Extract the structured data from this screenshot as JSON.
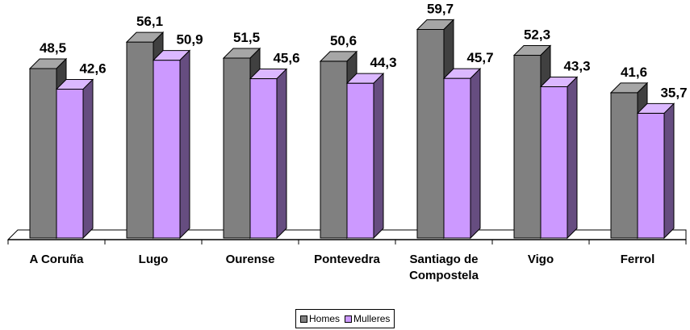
{
  "chart_data": {
    "type": "bar3d",
    "categories": [
      "A Coruña",
      "Lugo",
      "Ourense",
      "Pontevedra",
      "Santiago de Compostela",
      "Vigo",
      "Ferrol"
    ],
    "series": [
      {
        "name": "Homes",
        "color": "#808080",
        "values": [
          48.5,
          56.1,
          51.5,
          50.6,
          59.7,
          52.3,
          41.6
        ],
        "value_labels": [
          "48,5",
          "56,1",
          "51,5",
          "50,6",
          "59,7",
          "52,3",
          "41,6"
        ]
      },
      {
        "name": "Mulleres",
        "color": "#cc99ff",
        "values": [
          42.6,
          50.9,
          45.6,
          44.3,
          45.7,
          43.3,
          35.7
        ],
        "value_labels": [
          "42,6",
          "50,9",
          "45,6",
          "44,3",
          "45,7",
          "43,3",
          "35,7"
        ]
      }
    ],
    "legend": "bottom"
  }
}
